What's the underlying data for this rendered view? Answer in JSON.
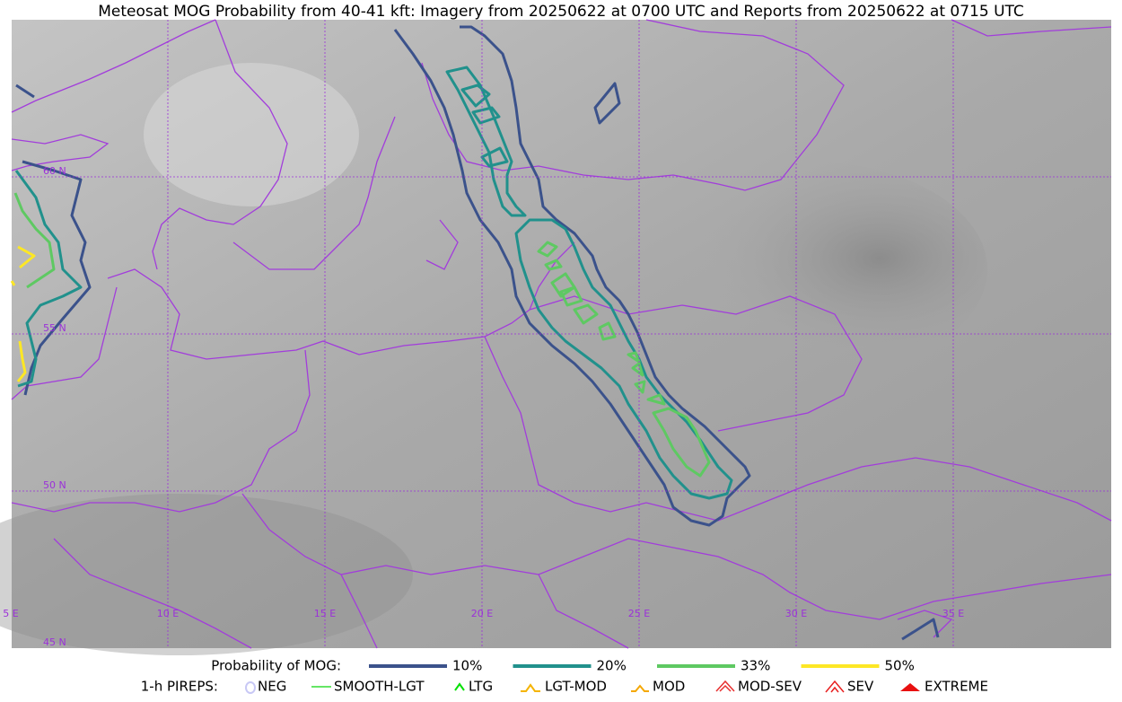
{
  "title": "Meteosat MOG Probability from 40-41 kft: Imagery from 20250622 at 0700 UTC and Reports from 20250622 at 0715 UTC",
  "map": {
    "lat_labels": [
      "60 N",
      "55 N",
      "50 N",
      "45 N"
    ],
    "lon_labels": [
      "5 E",
      "10 E",
      "15 E",
      "20 E",
      "25 E",
      "30 E",
      "35 E"
    ]
  },
  "legend": {
    "probability": {
      "label": "Probability of MOG:",
      "entries": [
        {
          "label": "10%",
          "color": "#3b528b"
        },
        {
          "label": "20%",
          "color": "#21918c"
        },
        {
          "label": "33%",
          "color": "#5ec962"
        },
        {
          "label": "50%",
          "color": "#fde725"
        }
      ]
    },
    "pireps": {
      "label": "1-h PIREPS:",
      "entries": [
        {
          "label": "NEG",
          "color": "#c8c8f5"
        },
        {
          "label": "SMOOTH-LGT",
          "color": "#33dd33"
        },
        {
          "label": "LTG",
          "color": "#00e000"
        },
        {
          "label": "LGT-MOD",
          "color": "#f5b400"
        },
        {
          "label": "MOD",
          "color": "#f5a800"
        },
        {
          "label": "MOD-SEV",
          "color": "#e83030"
        },
        {
          "label": "SEV",
          "color": "#e82020"
        },
        {
          "label": "EXTREME",
          "color": "#e81010"
        }
      ]
    }
  }
}
